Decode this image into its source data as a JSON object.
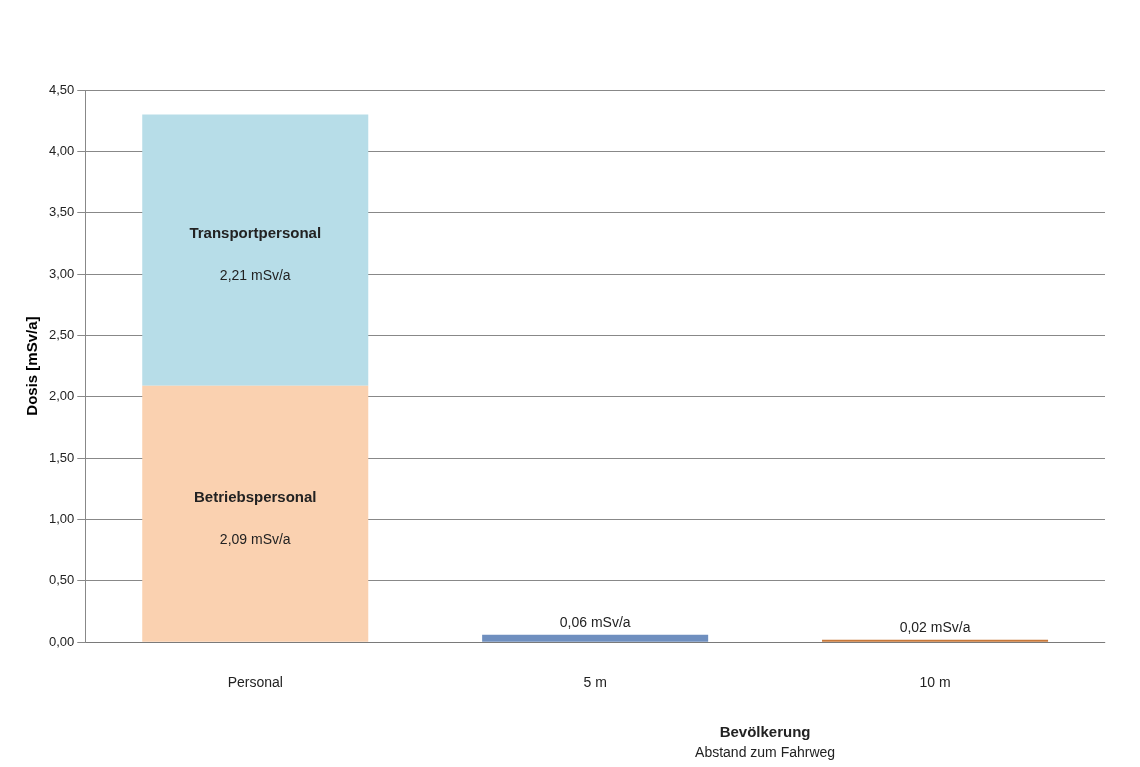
{
  "chart_data": {
    "type": "bar",
    "stacked": true,
    "categories": [
      "Personal",
      "5 m",
      "10 m"
    ],
    "series": [
      {
        "name": "Betriebspersonal",
        "color": "#fad1b0",
        "values": [
          2.09,
          null,
          null
        ],
        "value_labels": [
          "2,09 mSv/a",
          null,
          null
        ]
      },
      {
        "name": "Transportpersonal",
        "color": "#b7dde8",
        "values": [
          2.21,
          null,
          null
        ],
        "value_labels": [
          "2,21 mSv/a",
          null,
          null
        ]
      },
      {
        "colors": [
          "#6f8fbf",
          "#6f8fbf",
          "#c8783a"
        ],
        "values": [
          null,
          0.06,
          0.02
        ],
        "value_labels": [
          null,
          "0,06 mSv/a",
          "0,02 mSv/a"
        ]
      }
    ],
    "ylabel": "Dosis [mSv/a]",
    "xlabel": "Bevölkerung",
    "annotations": [
      "Abstand zum Fahrweg"
    ],
    "ylim": [
      0,
      4.5
    ],
    "yticks": [
      {
        "value": 0,
        "label": "0,00"
      },
      {
        "value": 0.5,
        "label": "0,50"
      },
      {
        "value": 1,
        "label": "1,00"
      },
      {
        "value": 1.5,
        "label": "1,50"
      },
      {
        "value": 2,
        "label": "2,00"
      },
      {
        "value": 2.5,
        "label": "2,50"
      },
      {
        "value": 3,
        "label": "3,00"
      },
      {
        "value": 3.5,
        "label": "3,50"
      },
      {
        "value": 4,
        "label": "4,00"
      },
      {
        "value": 4.5,
        "label": "4,50"
      }
    ],
    "grid": "y",
    "legend": false
  }
}
